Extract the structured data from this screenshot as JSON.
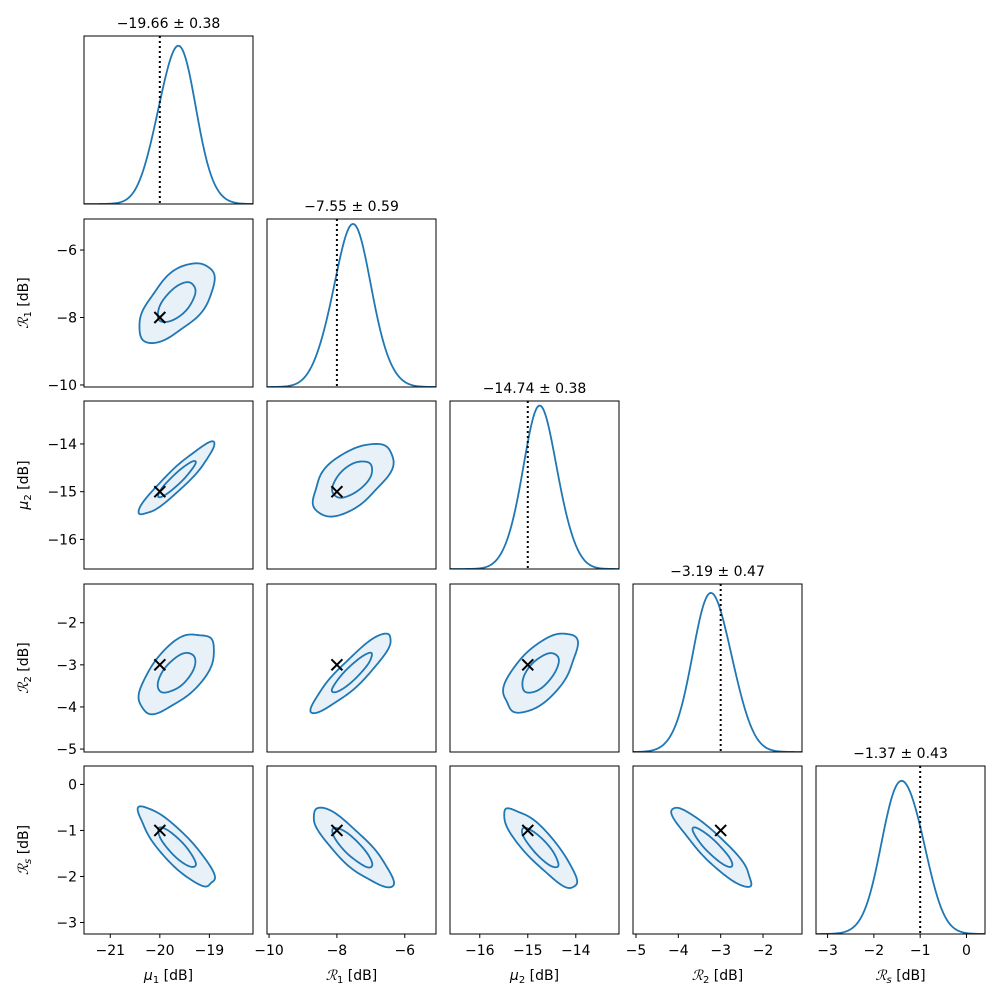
{
  "chart_data": {
    "type": "corner",
    "description": "Corner plot of posterior distributions with 1D marginal KDEs on diagonal and 2D credible-region contours (two levels, filled) below the diagonal; true values marked with dotted lines and x markers",
    "line_color": "#1f77b4",
    "fill_color": "#e8f0f8",
    "truth_marker_color": "#000000",
    "parameters": [
      {
        "key": "mu1",
        "label": "μ₁ [dB]",
        "label_sym": "μ",
        "label_sub": "1",
        "label_unit": " [dB]",
        "italic_script": false,
        "range": [
          -21.53,
          -18.12
        ],
        "ticks": [
          -21,
          -20,
          -19
        ],
        "truth": -20,
        "mean": -19.66,
        "std": 0.38,
        "title": "−19.66 ± 0.38",
        "y_ticks": []
      },
      {
        "key": "R1",
        "label": "ℛ₁ [dB]",
        "label_sym": "ℛ",
        "label_sub": "1",
        "label_unit": " [dB]",
        "italic_script": true,
        "range": [
          -10.06,
          -5.08
        ],
        "ticks": [
          -10,
          -8,
          -6
        ],
        "truth": -8,
        "mean": -7.55,
        "std": 0.59,
        "title": "−7.55 ± 0.59",
        "y_ticks": [
          -10,
          -8,
          -6
        ]
      },
      {
        "key": "mu2",
        "label": "μ₂ [dB]",
        "label_sym": "μ",
        "label_sub": "2",
        "label_unit": " [dB]",
        "italic_script": false,
        "range": [
          -16.62,
          -13.1
        ],
        "ticks": [
          -16,
          -15,
          -14
        ],
        "truth": -15,
        "mean": -14.74,
        "std": 0.38,
        "title": "−14.74 ± 0.38",
        "y_ticks": [
          -16,
          -15,
          -14
        ]
      },
      {
        "key": "R2",
        "label": "ℛ₂ [dB]",
        "label_sym": "ℛ",
        "label_sub": "2",
        "label_unit": " [dB]",
        "italic_script": true,
        "range": [
          -5.07,
          -1.08
        ],
        "ticks": [
          -5,
          -4,
          -3,
          -2
        ],
        "truth": -3,
        "mean": -3.19,
        "std": 0.47,
        "title": "−3.19 ± 0.47",
        "y_ticks": [
          -5,
          -4,
          -3,
          -2
        ]
      },
      {
        "key": "Rs",
        "label": "ℛs [dB]",
        "label_sym": "ℛ",
        "label_sub": "s",
        "label_unit": " [dB]",
        "italic_script": true,
        "range": [
          -3.25,
          0.4
        ],
        "ticks": [
          -3,
          -2,
          -1,
          0
        ],
        "truth": -1,
        "mean": -1.37,
        "std": 0.43,
        "title": "−1.37 ± 0.43",
        "y_ticks": [
          -3,
          -2,
          -1,
          0
        ]
      }
    ],
    "correlations": {
      "R1_mu1": 0.6,
      "mu2_mu1": 0.93,
      "mu2_R1": 0.55,
      "R2_mu1": 0.6,
      "R2_R1": 0.9,
      "R2_mu2": 0.6,
      "Rs_mu1": -0.85,
      "Rs_R1": -0.85,
      "Rs_mu2": -0.85,
      "Rs_R2": -0.9
    },
    "contour_levels_sigma": [
      1,
      2
    ],
    "grid": false,
    "legend": "none"
  }
}
